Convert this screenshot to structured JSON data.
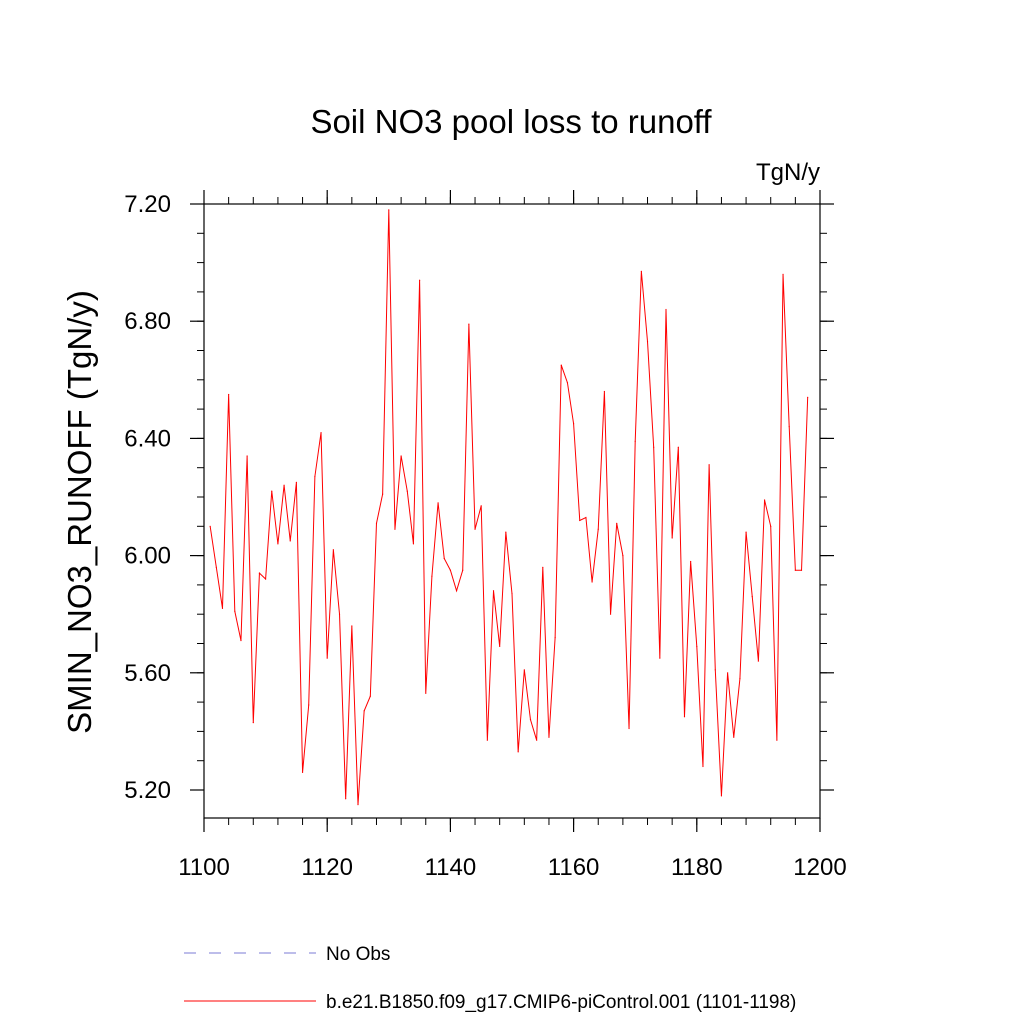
{
  "chart_data": {
    "type": "line",
    "title": "Soil NO3 pool loss to runoff",
    "units": "TgN/y",
    "xlabel": "",
    "ylabel": "SMIN_NO3_RUNOFF  (TgN/y)",
    "xlim": [
      1100,
      1200
    ],
    "ylim": [
      5.1,
      7.25
    ],
    "x_ticks": [
      1100,
      1120,
      1140,
      1160,
      1180,
      1200
    ],
    "x_tick_labels": [
      "1100",
      "1120",
      "1140",
      "1160",
      "1180",
      "1200"
    ],
    "x_minor_step": 4,
    "y_ticks": [
      5.2,
      5.6,
      6.0,
      6.4,
      6.8,
      7.2
    ],
    "y_tick_labels": [
      "5.20",
      "5.60",
      "6.00",
      "6.40",
      "6.80",
      "7.20"
    ],
    "y_minor_step": 0.1,
    "legend_placement": "bottom",
    "legend": [
      {
        "label": "No Obs",
        "style": "dashed",
        "color": "#7b7bd6"
      },
      {
        "label": "b.e21.B1850.f09_g17.CMIP6-piControl.001 (1101-1198)",
        "style": "solid",
        "color": "#ff0000"
      }
    ],
    "series": [
      {
        "name": "b.e21.B1850.f09_g17.CMIP6-piControl.001 (1101-1198)",
        "color": "#ff0000",
        "x_start": 1101,
        "x_step": 1,
        "values": [
          6.1,
          5.96,
          5.82,
          6.55,
          5.81,
          5.71,
          6.34,
          5.43,
          5.94,
          5.92,
          6.22,
          6.04,
          6.24,
          6.05,
          6.25,
          5.26,
          5.49,
          6.27,
          6.42,
          5.65,
          6.02,
          5.8,
          5.17,
          5.76,
          5.15,
          5.47,
          5.52,
          6.11,
          6.21,
          7.18,
          6.09,
          6.34,
          6.22,
          6.04,
          6.94,
          5.53,
          5.93,
          6.18,
          5.99,
          5.95,
          5.88,
          5.95,
          6.79,
          6.09,
          6.17,
          5.37,
          5.88,
          5.69,
          6.08,
          5.87,
          5.33,
          5.61,
          5.44,
          5.37,
          5.96,
          5.38,
          5.72,
          6.65,
          6.59,
          6.45,
          6.12,
          6.13,
          5.91,
          6.09,
          6.56,
          5.8,
          6.11,
          6.0,
          5.41,
          6.39,
          6.97,
          6.73,
          6.37,
          5.65,
          6.84,
          6.06,
          6.37,
          5.45,
          5.98,
          5.69,
          5.28,
          6.31,
          5.61,
          5.18,
          5.6,
          5.38,
          5.58,
          6.08,
          5.86,
          5.64,
          6.19,
          6.1,
          5.37,
          6.96,
          6.44,
          5.95,
          5.95,
          6.54
        ]
      }
    ]
  }
}
